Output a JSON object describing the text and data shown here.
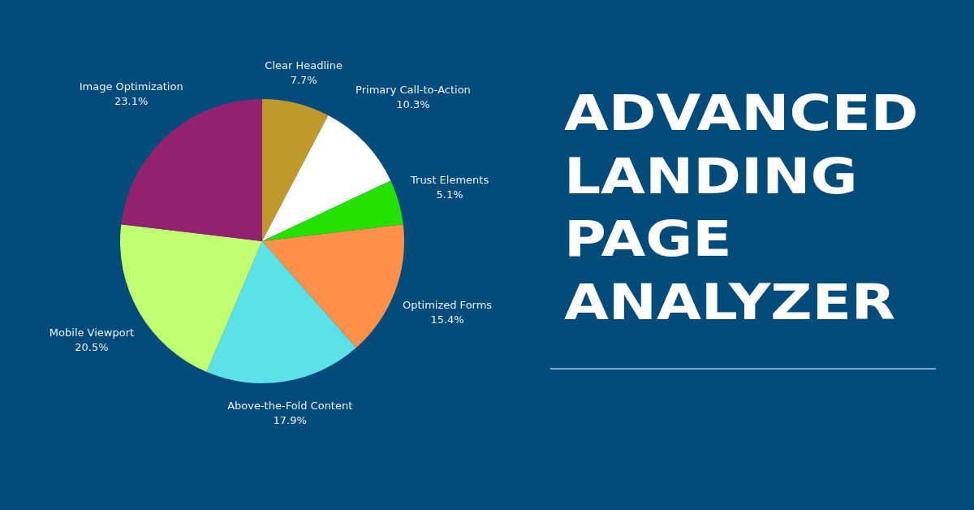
{
  "chart_data": {
    "type": "pie",
    "title": "ADVANCED LANDING PAGE ANALYZER",
    "categories": [
      "Clear Headline",
      "Primary Call-to-Action",
      "Trust Elements",
      "Optimized Forms",
      "Above-the-Fold Content",
      "Mobile Viewport",
      "Image Optimization"
    ],
    "values": [
      7.7,
      10.3,
      5.1,
      15.4,
      17.9,
      20.5,
      23.1
    ],
    "value_labels": [
      "7.7%",
      "10.3%",
      "5.1%",
      "15.4%",
      "17.9%",
      "20.5%",
      "23.1%"
    ],
    "colors": [
      "#bd9a2b",
      "#ffffff",
      "#24e100",
      "#ff914d",
      "#5ce1e6",
      "#c1ff72",
      "#92226f"
    ]
  }
}
